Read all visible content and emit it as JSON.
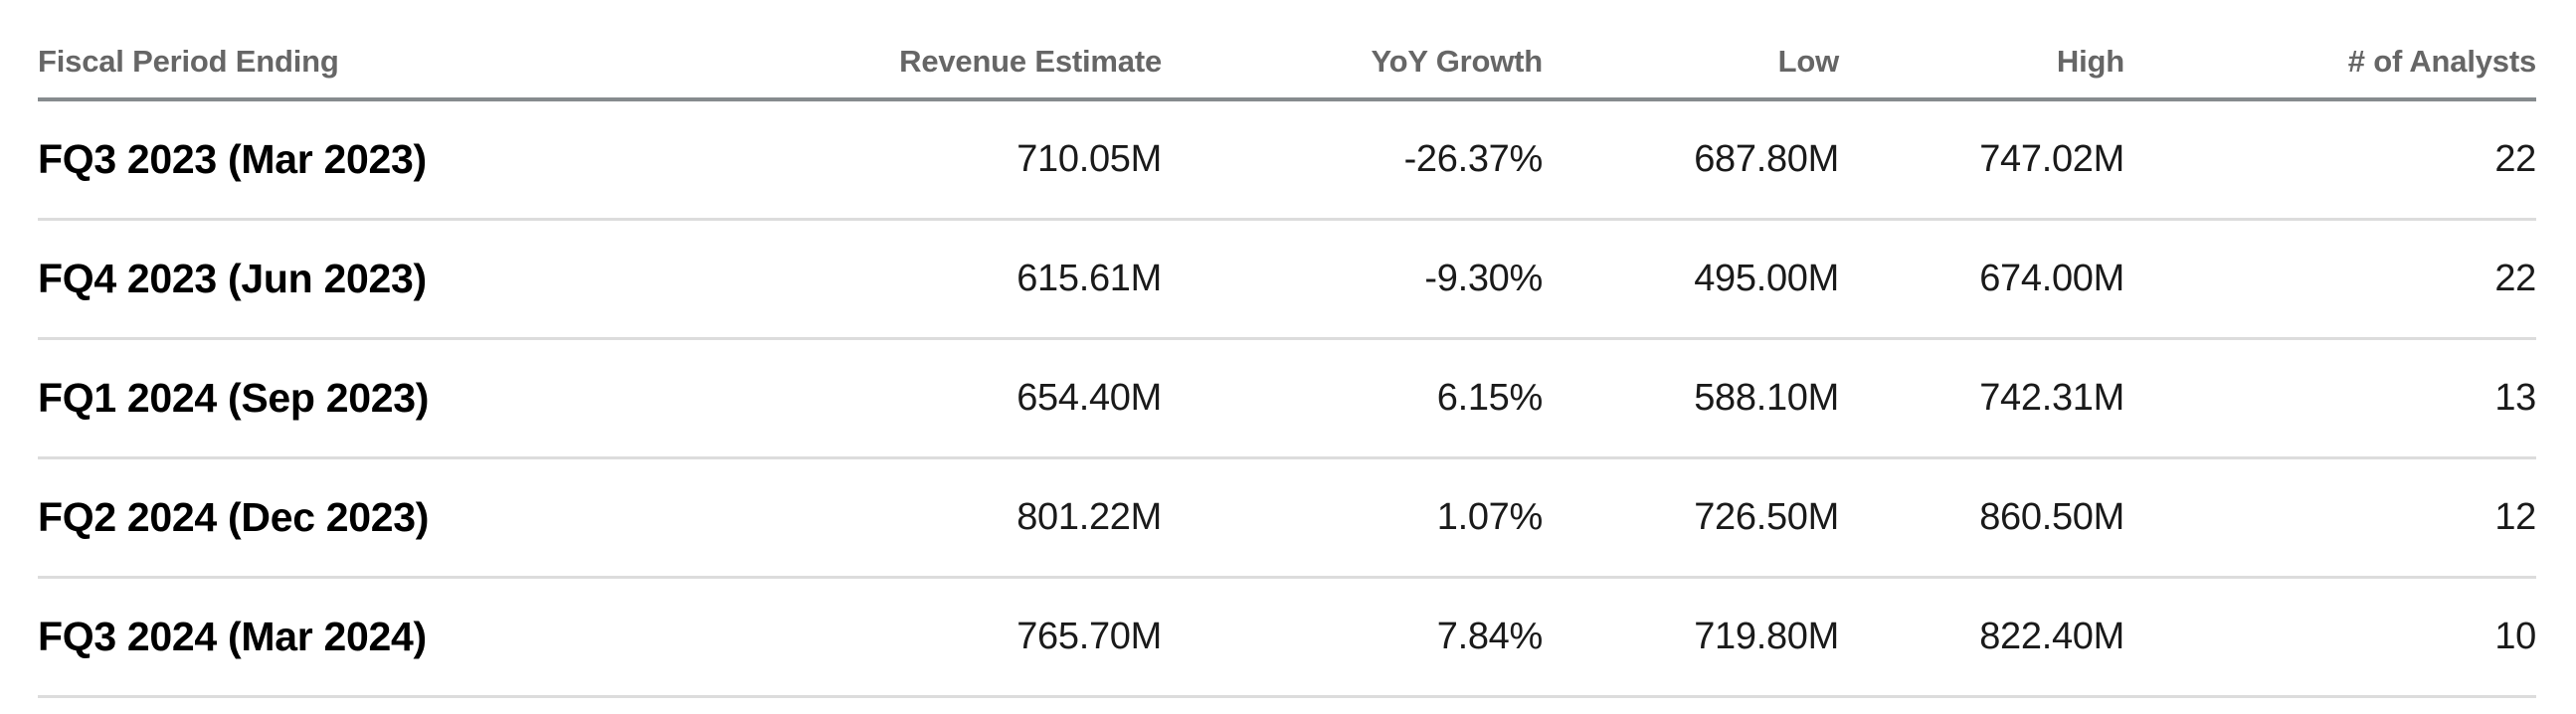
{
  "colors": {
    "background": "#ffffff",
    "header_text": "#666666",
    "header_rule": "#868b8e",
    "row_rule": "#dcdcdc",
    "period_text": "#000000",
    "value_text": "#1a1a1a"
  },
  "table": {
    "headers": {
      "period": "Fiscal Period Ending",
      "revenue": "Revenue Estimate",
      "yoy": "YoY Growth",
      "low": "Low",
      "high": "High",
      "analysts": "# of Analysts"
    },
    "rows": [
      {
        "period": "FQ3 2023 (Mar 2023)",
        "revenue": "710.05M",
        "yoy": "-26.37%",
        "low": "687.80M",
        "high": "747.02M",
        "analysts": "22"
      },
      {
        "period": "FQ4 2023 (Jun 2023)",
        "revenue": "615.61M",
        "yoy": "-9.30%",
        "low": "495.00M",
        "high": "674.00M",
        "analysts": "22"
      },
      {
        "period": "FQ1 2024 (Sep 2023)",
        "revenue": "654.40M",
        "yoy": "6.15%",
        "low": "588.10M",
        "high": "742.31M",
        "analysts": "13"
      },
      {
        "period": "FQ2 2024 (Dec 2023)",
        "revenue": "801.22M",
        "yoy": "1.07%",
        "low": "726.50M",
        "high": "860.50M",
        "analysts": "12"
      },
      {
        "period": "FQ3 2024 (Mar 2024)",
        "revenue": "765.70M",
        "yoy": "7.84%",
        "low": "719.80M",
        "high": "822.40M",
        "analysts": "10"
      }
    ]
  },
  "chart_data": {
    "type": "table",
    "title": "",
    "columns": [
      "Fiscal Period Ending",
      "Revenue Estimate",
      "YoY Growth",
      "Low",
      "High",
      "# of Analysts"
    ],
    "rows": [
      [
        "FQ3 2023 (Mar 2023)",
        "710.05M",
        "-26.37%",
        "687.80M",
        "747.02M",
        22
      ],
      [
        "FQ4 2023 (Jun 2023)",
        "615.61M",
        "-9.30%",
        "495.00M",
        "674.00M",
        22
      ],
      [
        "FQ1 2024 (Sep 2023)",
        "654.40M",
        "6.15%",
        "588.10M",
        "742.31M",
        13
      ],
      [
        "FQ2 2024 (Dec 2023)",
        "801.22M",
        "1.07%",
        "726.50M",
        "860.50M",
        12
      ],
      [
        "FQ3 2024 (Mar 2024)",
        "765.70M",
        "7.84%",
        "719.80M",
        "822.40M",
        10
      ]
    ],
    "column_alignments": [
      "left",
      "right",
      "right",
      "right",
      "right",
      "right"
    ],
    "notes": "Analyst revenue estimates per fiscal quarter; values in millions (M); grid rules horizontal only"
  }
}
